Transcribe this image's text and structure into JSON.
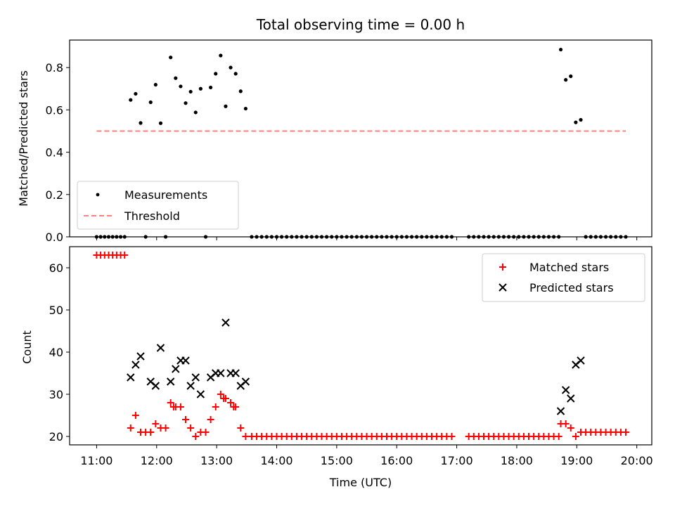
{
  "chart_data": [
    {
      "type": "scatter",
      "title": "Total observing time = 0.00 h",
      "xlabel": "",
      "ylabel": "Matched/Predicted stars",
      "ylim": [
        0.0,
        0.93
      ],
      "yticks": [
        "0.0",
        "0.2",
        "0.4",
        "0.6",
        "0.8"
      ],
      "ytick_values": [
        0.0,
        0.2,
        0.4,
        0.6,
        0.8
      ],
      "xlim_hours": [
        10.55,
        20.25
      ],
      "legend_position": "lower-left",
      "series": [
        {
          "name": "Measurements",
          "color": "#000000",
          "marker": "dot",
          "x_hours": [
            11.0,
            11.0667,
            11.1333,
            11.2,
            11.2667,
            11.3333,
            11.4,
            11.4667,
            11.5667,
            11.65,
            11.7333,
            11.8167,
            11.9,
            11.9833,
            12.0667,
            12.15,
            12.2333,
            12.3167,
            12.4,
            12.4833,
            12.5667,
            12.65,
            12.7333,
            12.8167,
            12.9,
            12.9833,
            13.0667,
            13.15,
            13.2333,
            13.3167,
            13.4,
            13.4833,
            13.5833,
            13.6667,
            13.75,
            13.8333,
            13.9167,
            14.0,
            14.0833,
            14.1667,
            14.25,
            14.3333,
            14.4167,
            14.5,
            14.5833,
            14.6667,
            14.75,
            14.8333,
            14.9167,
            15.0,
            15.0833,
            15.1667,
            15.25,
            15.3333,
            15.4167,
            15.5,
            15.5833,
            15.6667,
            15.75,
            15.8333,
            15.9167,
            16.0,
            16.0833,
            16.1667,
            16.25,
            16.3333,
            16.4167,
            16.5,
            16.5833,
            16.6667,
            16.75,
            16.8333,
            16.9167,
            17.2,
            17.2833,
            17.3667,
            17.45,
            17.5333,
            17.6167,
            17.7,
            17.7833,
            17.8667,
            17.95,
            18.0333,
            18.1167,
            18.2,
            18.2833,
            18.3667,
            18.45,
            18.5333,
            18.6167,
            18.7,
            18.7333,
            18.8167,
            18.9,
            18.9833,
            19.0667,
            19.15,
            19.2333,
            19.3167,
            19.4,
            19.4833,
            19.5667,
            19.65,
            19.7333,
            19.8167
          ],
          "y": [
            0.0,
            0.0,
            0.0,
            0.0,
            0.0,
            0.0,
            0.0,
            0.0,
            0.647,
            0.676,
            0.538,
            0.0,
            0.636,
            0.719,
            0.537,
            0.0,
            0.848,
            0.75,
            0.711,
            0.632,
            0.686,
            0.588,
            0.7,
            0.0,
            0.706,
            0.771,
            0.857,
            0.617,
            0.8,
            0.771,
            0.688,
            0.606,
            0.0,
            0.0,
            0.0,
            0.0,
            0.0,
            0.0,
            0.0,
            0.0,
            0.0,
            0.0,
            0.0,
            0.0,
            0.0,
            0.0,
            0.0,
            0.0,
            0.0,
            0.0,
            0.0,
            0.0,
            0.0,
            0.0,
            0.0,
            0.0,
            0.0,
            0.0,
            0.0,
            0.0,
            0.0,
            0.0,
            0.0,
            0.0,
            0.0,
            0.0,
            0.0,
            0.0,
            0.0,
            0.0,
            0.0,
            0.0,
            0.0,
            0.0,
            0.0,
            0.0,
            0.0,
            0.0,
            0.0,
            0.0,
            0.0,
            0.0,
            0.0,
            0.0,
            0.0,
            0.0,
            0.0,
            0.0,
            0.0,
            0.0,
            0.0,
            0.0,
            0.885,
            0.742,
            0.759,
            0.541,
            0.553,
            0.0,
            0.0,
            0.0,
            0.0,
            0.0,
            0.0,
            0.0,
            0.0,
            0.0
          ]
        },
        {
          "name": "Threshold",
          "color": "#ff7f7f",
          "style": "dashed",
          "x_hours": [
            11.0,
            19.8167
          ],
          "y": [
            0.5,
            0.5
          ]
        }
      ]
    },
    {
      "type": "scatter",
      "title": "",
      "xlabel": "Time (UTC)",
      "ylabel": "Count",
      "ylim": [
        18.0,
        65.0
      ],
      "yticks": [
        "20",
        "30",
        "40",
        "50",
        "60"
      ],
      "ytick_values": [
        20,
        30,
        40,
        50,
        60
      ],
      "xlim_hours": [
        10.55,
        20.25
      ],
      "xticks": [
        "11:00",
        "12:00",
        "13:00",
        "14:00",
        "15:00",
        "16:00",
        "17:00",
        "18:00",
        "19:00",
        "20:00"
      ],
      "xtick_values_hours": [
        11,
        12,
        13,
        14,
        15,
        16,
        17,
        18,
        19,
        20
      ],
      "legend_position": "upper-right",
      "series": [
        {
          "name": "Matched stars",
          "color": "#ff0000",
          "marker": "plus",
          "x_hours": [
            11.0,
            11.0667,
            11.1333,
            11.2,
            11.2667,
            11.3333,
            11.4,
            11.4667,
            11.5667,
            11.65,
            11.7333,
            11.8167,
            11.9,
            11.9833,
            12.0667,
            12.15,
            12.2333,
            12.2833,
            12.3167,
            12.4,
            12.4833,
            12.5667,
            12.65,
            12.7333,
            12.8167,
            12.9,
            12.9833,
            13.0667,
            13.1167,
            13.15,
            13.2333,
            13.2833,
            13.3167,
            13.4,
            13.4833,
            13.5833,
            13.6667,
            13.75,
            13.8333,
            13.9167,
            14.0,
            14.0833,
            14.1667,
            14.25,
            14.3333,
            14.4167,
            14.5,
            14.5833,
            14.6667,
            14.75,
            14.8333,
            14.9167,
            15.0,
            15.0833,
            15.1667,
            15.25,
            15.3333,
            15.4167,
            15.5,
            15.5833,
            15.6667,
            15.75,
            15.8333,
            15.9167,
            16.0,
            16.0833,
            16.1667,
            16.25,
            16.3333,
            16.4167,
            16.5,
            16.5833,
            16.6667,
            16.75,
            16.8333,
            16.9167,
            17.2,
            17.2833,
            17.3667,
            17.45,
            17.5333,
            17.6167,
            17.7,
            17.7833,
            17.8667,
            17.95,
            18.0333,
            18.1167,
            18.2,
            18.2833,
            18.3667,
            18.45,
            18.5333,
            18.6167,
            18.7,
            18.7333,
            18.8167,
            18.9,
            18.9833,
            19.0667,
            19.15,
            19.2333,
            19.3167,
            19.4,
            19.4833,
            19.5667,
            19.65,
            19.7333,
            19.8167
          ],
          "y": [
            63,
            63,
            63,
            63,
            63,
            63,
            63,
            63,
            22,
            25,
            21,
            21,
            21,
            23,
            22,
            22,
            28,
            27,
            27,
            27,
            24,
            22,
            20,
            21,
            21,
            24,
            27,
            30,
            29,
            29,
            28,
            27,
            27,
            22,
            20,
            20,
            20,
            20,
            20,
            20,
            20,
            20,
            20,
            20,
            20,
            20,
            20,
            20,
            20,
            20,
            20,
            20,
            20,
            20,
            20,
            20,
            20,
            20,
            20,
            20,
            20,
            20,
            20,
            20,
            20,
            20,
            20,
            20,
            20,
            20,
            20,
            20,
            20,
            20,
            20,
            20,
            20,
            20,
            20,
            20,
            20,
            20,
            20,
            20,
            20,
            20,
            20,
            20,
            20,
            20,
            20,
            20,
            20,
            20,
            20,
            23,
            23,
            22,
            20,
            21,
            21,
            21,
            21,
            21,
            21,
            21,
            21,
            21,
            21
          ]
        },
        {
          "name": "Predicted stars",
          "color": "#000000",
          "marker": "x",
          "x_hours": [
            11.5667,
            11.65,
            11.7333,
            11.9,
            11.9833,
            12.0667,
            12.2333,
            12.3167,
            12.4,
            12.4833,
            12.5667,
            12.65,
            12.7333,
            12.9,
            12.9833,
            13.0667,
            13.15,
            13.2333,
            13.3167,
            13.4,
            13.4833,
            18.7333,
            18.8167,
            18.9,
            18.9833,
            19.0667
          ],
          "y": [
            34,
            37,
            39,
            33,
            32,
            41,
            33,
            36,
            38,
            38,
            32,
            34,
            30,
            34,
            35,
            35,
            47,
            35,
            35,
            32,
            33,
            26,
            31,
            29,
            37,
            38
          ]
        }
      ]
    }
  ]
}
